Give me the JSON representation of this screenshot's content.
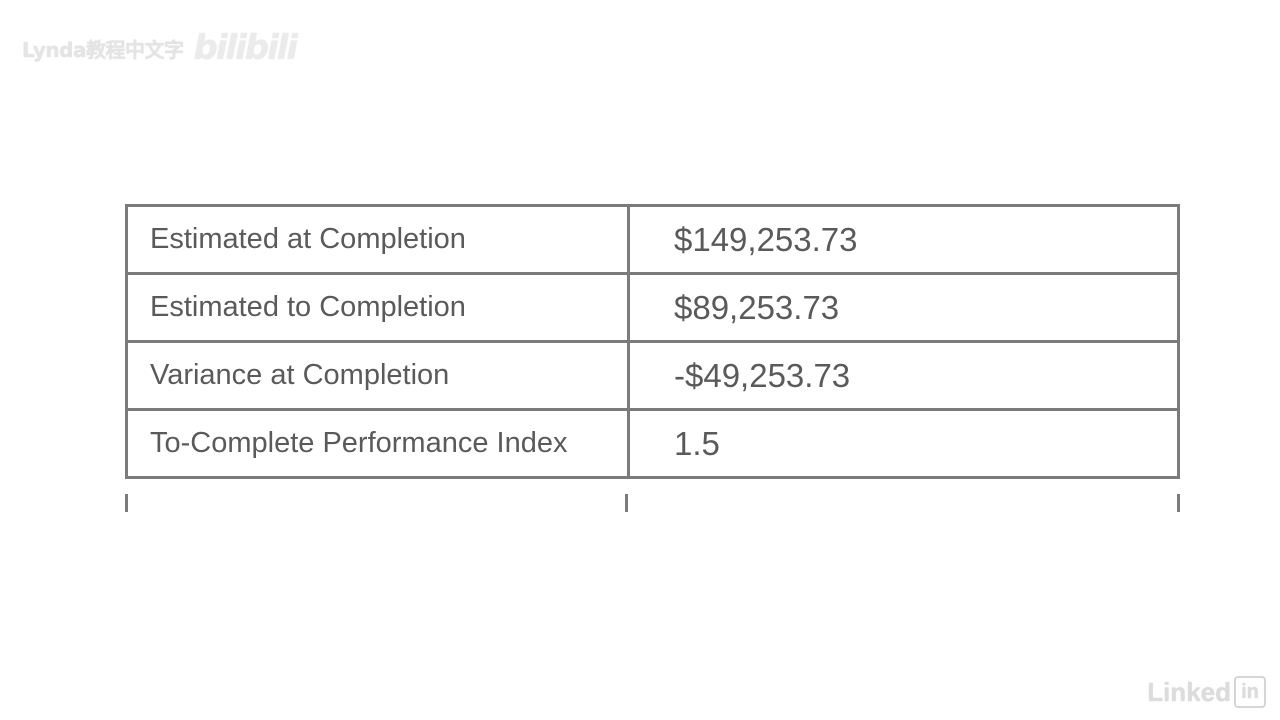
{
  "watermark": {
    "text": "Lynda教程中文字",
    "logo": "bilibili"
  },
  "table": {
    "rows": [
      {
        "label": "Estimated at Completion",
        "value": "$149,253.73"
      },
      {
        "label": "Estimated to Completion",
        "value": "$89,253.73"
      },
      {
        "label": "Variance at Completion",
        "value": "-$49,253.73"
      },
      {
        "label": "To-Complete Performance Index",
        "value": "1.5"
      }
    ]
  },
  "branding": {
    "linked_text": "Linked",
    "in_text": "in"
  }
}
